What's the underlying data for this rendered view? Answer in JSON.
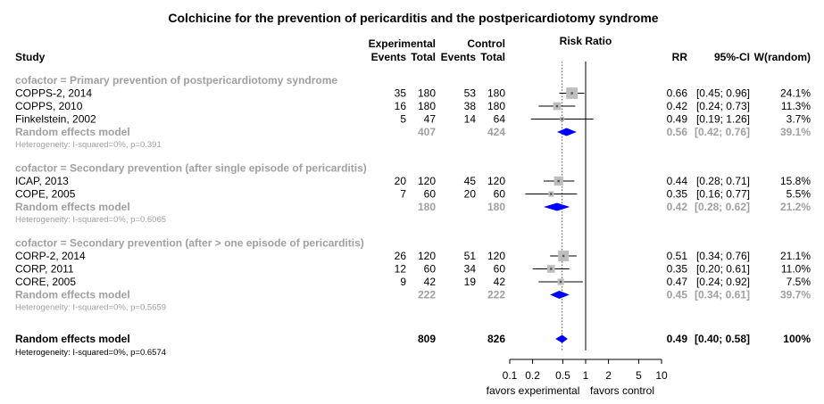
{
  "title": "Colchicine for the prevention of pericarditis and the postpericardiotomy syndrome",
  "headers": {
    "study": "Study",
    "experimental": "Experimental",
    "control": "Control",
    "events": "Events",
    "total": "Total",
    "risk_ratio": "Risk Ratio",
    "rr": "RR",
    "ci": "95%-CI",
    "weight": "W(random)"
  },
  "axis": {
    "ticks": [
      "0.1",
      "0.2",
      "0.5",
      "1",
      "2",
      "5",
      "10"
    ],
    "left_label": "favors experimental",
    "right_label": "favors control"
  },
  "colors": {
    "diamond": "#0000ff",
    "box": "#bebebe",
    "subgroup_text": "#a0a0a0",
    "line": "#000000"
  },
  "chart_data": {
    "type": "forest",
    "title": "Colchicine for the prevention of pericarditis and the postpericardiotomy syndrome",
    "xlabel": "Risk Ratio",
    "xscale": "log",
    "xlim": [
      0.1,
      10
    ],
    "null_value": 1,
    "pooled_reference_line": 0.49,
    "subgroups": [
      {
        "label": "cofactor = Primary prevention of postpericardiotomy syndrome",
        "studies": [
          {
            "name": "COPPS-2, 2014",
            "e_events": "35",
            "e_total": "180",
            "c_events": "53",
            "c_total": "180",
            "rr": 0.66,
            "lo": 0.45,
            "hi": 0.96,
            "rr_text": "0.66",
            "ci_text": "[0.45; 0.96]",
            "w_text": "24.1%",
            "weight": 24.1
          },
          {
            "name": "COPPS, 2010",
            "e_events": "16",
            "e_total": "180",
            "c_events": "38",
            "c_total": "180",
            "rr": 0.42,
            "lo": 0.24,
            "hi": 0.73,
            "rr_text": "0.42",
            "ci_text": "[0.24; 0.73]",
            "w_text": "11.3%",
            "weight": 11.3
          },
          {
            "name": "Finkelstein, 2002",
            "e_events": "5",
            "e_total": "47",
            "c_events": "14",
            "c_total": "64",
            "rr": 0.49,
            "lo": 0.19,
            "hi": 1.26,
            "rr_text": "0.49",
            "ci_text": "[0.19; 1.26]",
            "w_text": "3.7%",
            "weight": 3.7
          }
        ],
        "pooled": {
          "name": "Random effects model",
          "e_total": "407",
          "c_total": "424",
          "rr": 0.56,
          "lo": 0.42,
          "hi": 0.76,
          "rr_text": "0.56",
          "ci_text": "[0.42; 0.76]",
          "w_text": "39.1%"
        },
        "heterogeneity": "Heterogeneity: I-squared=0%, p=0.391"
      },
      {
        "label": "cofactor = Secondary prevention (after single episode of pericarditis)",
        "studies": [
          {
            "name": "ICAP, 2013",
            "e_events": "20",
            "e_total": "120",
            "c_events": "45",
            "c_total": "120",
            "rr": 0.44,
            "lo": 0.28,
            "hi": 0.71,
            "rr_text": "0.44",
            "ci_text": "[0.28; 0.71]",
            "w_text": "15.8%",
            "weight": 15.8
          },
          {
            "name": "COPE, 2005",
            "e_events": "7",
            "e_total": "60",
            "c_events": "20",
            "c_total": "60",
            "rr": 0.35,
            "lo": 0.16,
            "hi": 0.77,
            "rr_text": "0.35",
            "ci_text": "[0.16; 0.77]",
            "w_text": "5.5%",
            "weight": 5.5
          }
        ],
        "pooled": {
          "name": "Random effects model",
          "e_total": "180",
          "c_total": "180",
          "rr": 0.42,
          "lo": 0.28,
          "hi": 0.62,
          "rr_text": "0.42",
          "ci_text": "[0.28; 0.62]",
          "w_text": "21.2%"
        },
        "heterogeneity": "Heterogeneity: I-squared=0%, p=0.6065"
      },
      {
        "label": "cofactor = Secondary prevention (after > one episode of pericarditis)",
        "studies": [
          {
            "name": "CORP-2, 2014",
            "e_events": "26",
            "e_total": "120",
            "c_events": "51",
            "c_total": "120",
            "rr": 0.51,
            "lo": 0.34,
            "hi": 0.76,
            "rr_text": "0.51",
            "ci_text": "[0.34; 0.76]",
            "w_text": "21.1%",
            "weight": 21.1
          },
          {
            "name": "CORP, 2011",
            "e_events": "12",
            "e_total": "60",
            "c_events": "34",
            "c_total": "60",
            "rr": 0.35,
            "lo": 0.2,
            "hi": 0.61,
            "rr_text": "0.35",
            "ci_text": "[0.20; 0.61]",
            "w_text": "11.0%",
            "weight": 11.0
          },
          {
            "name": "CORE, 2005",
            "e_events": "9",
            "e_total": "42",
            "c_events": "19",
            "c_total": "42",
            "rr": 0.47,
            "lo": 0.24,
            "hi": 0.92,
            "rr_text": "0.47",
            "ci_text": "[0.24; 0.92]",
            "w_text": "7.5%",
            "weight": 7.5
          }
        ],
        "pooled": {
          "name": "Random effects model",
          "e_total": "222",
          "c_total": "222",
          "rr": 0.45,
          "lo": 0.34,
          "hi": 0.61,
          "rr_text": "0.45",
          "ci_text": "[0.34; 0.61]",
          "w_text": "39.7%"
        },
        "heterogeneity": "Heterogeneity: I-squared=0%, p=0.5659"
      }
    ],
    "overall": {
      "name": "Random effects model",
      "e_total": "809",
      "c_total": "826",
      "rr": 0.49,
      "lo": 0.4,
      "hi": 0.58,
      "rr_text": "0.49",
      "ci_text": "[0.40; 0.58]",
      "w_text": "100%",
      "heterogeneity": "Heterogeneity: I-squared=0%, p=0.6574"
    }
  }
}
